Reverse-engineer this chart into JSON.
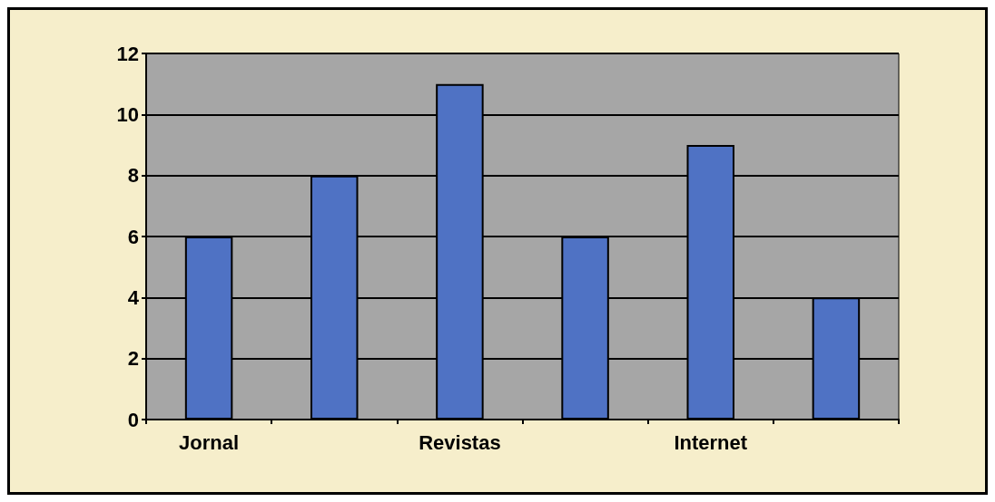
{
  "chart_data": {
    "type": "bar",
    "categories": [
      "Jornal",
      null,
      "Revistas",
      null,
      "Internet",
      null
    ],
    "values": [
      6,
      8,
      11,
      6,
      9,
      4
    ],
    "color": "#4f72c4",
    "ylim": [
      0,
      12
    ],
    "yticks": [
      0,
      2,
      4,
      6,
      8,
      10,
      12
    ],
    "grid": "y"
  }
}
